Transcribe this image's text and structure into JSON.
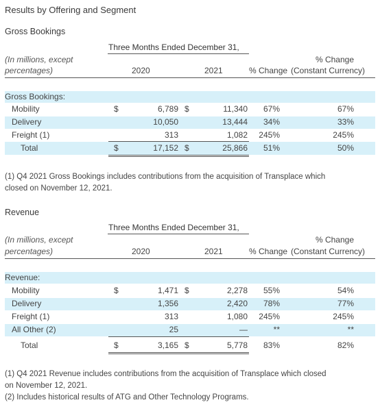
{
  "title": "Results by Offering and Segment",
  "footnote_marker": "(1)",
  "gross": {
    "section_title": "Gross Bookings",
    "period": "Three Months Ended December 31,",
    "unit_note_1": "(In millions, except",
    "unit_note_2": "percentages)",
    "col_2020": "2020",
    "col_2021": "2021",
    "col_pct": "% Change",
    "col_pctcc_1": "% Change",
    "col_pctcc_2": "(Constant Currency)",
    "group_label": "Gross Bookings:",
    "rows": [
      {
        "label": "Mobility",
        "dollar1": "$",
        "v2020": "6,789",
        "dollar2": "$",
        "v2021": "11,340",
        "pct": "67%",
        "pctcc": "67%"
      },
      {
        "label": "Delivery",
        "dollar1": "",
        "v2020": "10,050",
        "dollar2": "",
        "v2021": "13,444",
        "pct": "34%",
        "pctcc": "33%"
      },
      {
        "label": "Freight (1)",
        "dollar1": "",
        "v2020": "313",
        "dollar2": "",
        "v2021": "1,082",
        "pct": "245%",
        "pctcc": "245%"
      }
    ],
    "total": {
      "label": "Total",
      "dollar1": "$",
      "v2020": "17,152",
      "dollar2": "$",
      "v2021": "25,866",
      "pct": "51%",
      "pctcc": "50%"
    },
    "note_1": "(1) Q4 2021 Gross Bookings includes contributions from the acquisition of Transplace which",
    "note_2": "closed on November 12, 2021."
  },
  "revenue": {
    "section_title": "Revenue",
    "period": "Three Months Ended December 31,",
    "unit_note_1": "(In millions, except",
    "unit_note_2": "percentages)",
    "col_2020": "2020",
    "col_2021": "2021",
    "col_pct": "% Change",
    "col_pctcc_1": "% Change",
    "col_pctcc_2": "(Constant Currency)",
    "group_label": "Revenue:",
    "rows": [
      {
        "label": "Mobility",
        "dollar1": "$",
        "v2020": "1,471",
        "dollar2": "$",
        "v2021": "2,278",
        "pct": "55%",
        "pctcc": "54%"
      },
      {
        "label": "Delivery",
        "dollar1": "",
        "v2020": "1,356",
        "dollar2": "",
        "v2021": "2,420",
        "pct": "78%",
        "pctcc": "77%"
      },
      {
        "label": "Freight (1)",
        "dollar1": "",
        "v2020": "313",
        "dollar2": "",
        "v2021": "1,080",
        "pct": "245%",
        "pctcc": "245%"
      },
      {
        "label": "All Other (2)",
        "dollar1": "",
        "v2020": "25",
        "dollar2": "",
        "v2021": "—",
        "pct": "**",
        "pctcc": "**"
      }
    ],
    "total": {
      "label": "Total",
      "dollar1": "$",
      "v2020": "3,165",
      "dollar2": "$",
      "v2021": "5,778",
      "pct": "83%",
      "pctcc": "82%"
    },
    "note_1": "(1) Q4 2021 Revenue includes contributions from the acquisition of Transplace which closed",
    "note_2": "on November 12, 2021.",
    "note_3": "(2) Includes historical results of ATG and Other Technology Programs."
  }
}
